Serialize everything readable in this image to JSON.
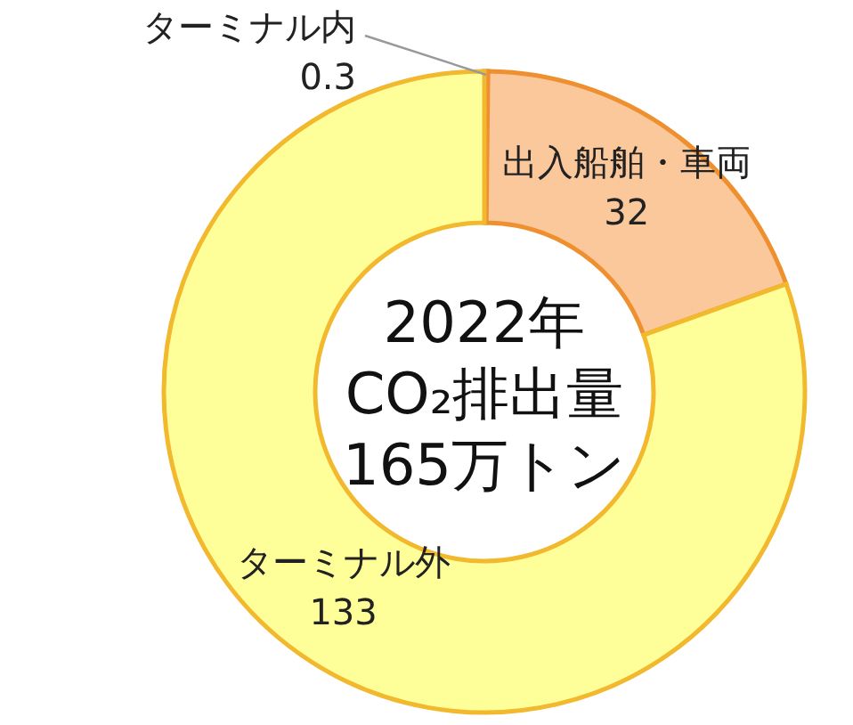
{
  "chart_data": {
    "type": "donut",
    "title": "2022年 CO₂排出量 165万トン",
    "categories": [
      "ターミナル内",
      "出入船舶・車両",
      "ターミナル外"
    ],
    "values": [
      0.3,
      32,
      133
    ],
    "colors": [
      "#bfbfbf",
      "#fbc89c",
      "#ffff99"
    ],
    "data_labels": true
  }
}
